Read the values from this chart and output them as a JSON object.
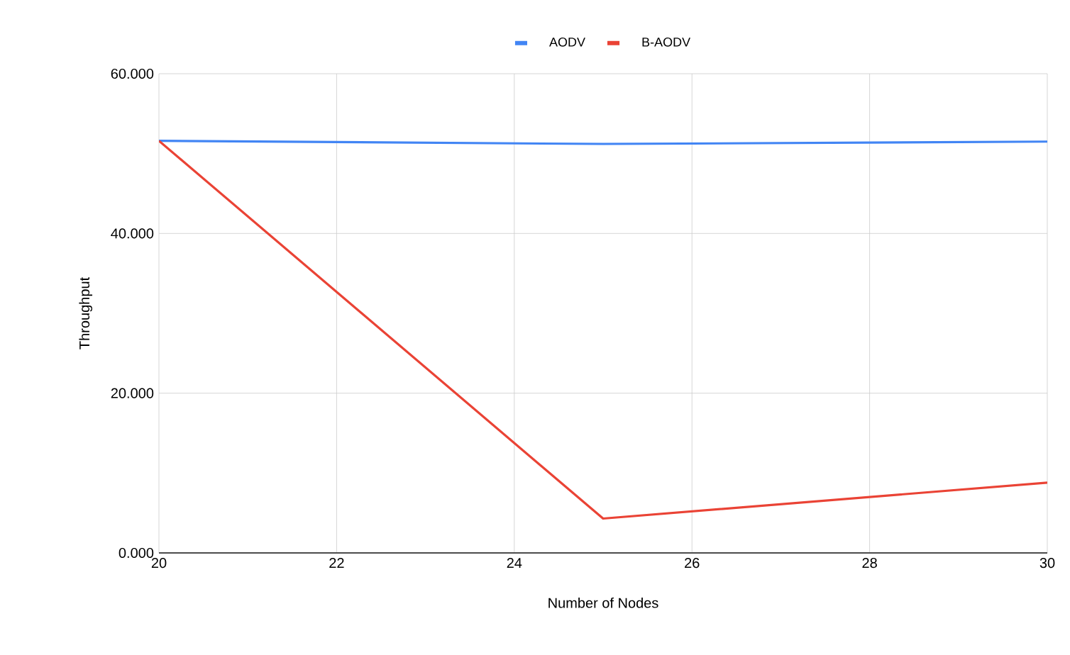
{
  "chart_data": {
    "type": "line",
    "xlabel": "Number of Nodes",
    "ylabel": "Throughput",
    "x": [
      20,
      25,
      30
    ],
    "series": [
      {
        "name": "AODV",
        "color": "#4285f4",
        "values": [
          51.6,
          51.2,
          51.5
        ]
      },
      {
        "name": "B-AODV",
        "color": "#ea4335",
        "values": [
          51.6,
          4.3,
          8.8
        ]
      }
    ],
    "xlim": [
      20,
      30
    ],
    "xticks": [
      20,
      22,
      24,
      26,
      28,
      30
    ],
    "ylim": [
      0,
      60
    ],
    "yticks": [
      {
        "value": 0,
        "label": "0.000"
      },
      {
        "value": 20,
        "label": "20.000"
      },
      {
        "value": 40,
        "label": "40.000"
      },
      {
        "value": 60,
        "label": "60.000"
      }
    ],
    "grid": true,
    "legend": "top",
    "marker": "none",
    "line_style": "solid"
  }
}
